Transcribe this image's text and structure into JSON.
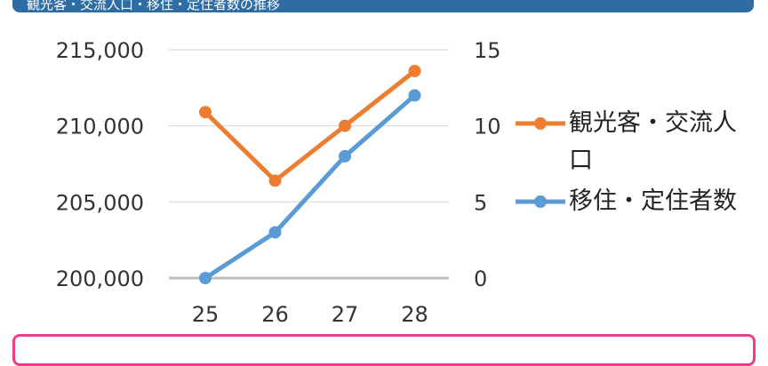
{
  "banner": {
    "text": "観光客・交流人口・移住・定住者数の推移"
  },
  "chart_data": {
    "type": "line",
    "title": "",
    "xlabel": "",
    "ylabel": "",
    "categories": [
      "25",
      "26",
      "27",
      "28"
    ],
    "x_tick_labels": [
      "25",
      "26",
      "27",
      "28"
    ],
    "ylim_left": [
      200000,
      215000
    ],
    "ylim_right": [
      0,
      15
    ],
    "y_left_tick_labels": [
      "200,000",
      "205,000",
      "210,000",
      "215,000"
    ],
    "y_right_tick_labels": [
      "0",
      "5",
      "10",
      "15"
    ],
    "grid": true,
    "legend_position": "right",
    "series": [
      {
        "name": "観光客・交流人口",
        "axis": "left",
        "color": "#ed7d31",
        "values": [
          210900,
          206400,
          210000,
          213600
        ]
      },
      {
        "name": "移住・定住者数",
        "axis": "right",
        "color": "#5b9bd5",
        "values": [
          0,
          3,
          8,
          12
        ]
      }
    ]
  }
}
